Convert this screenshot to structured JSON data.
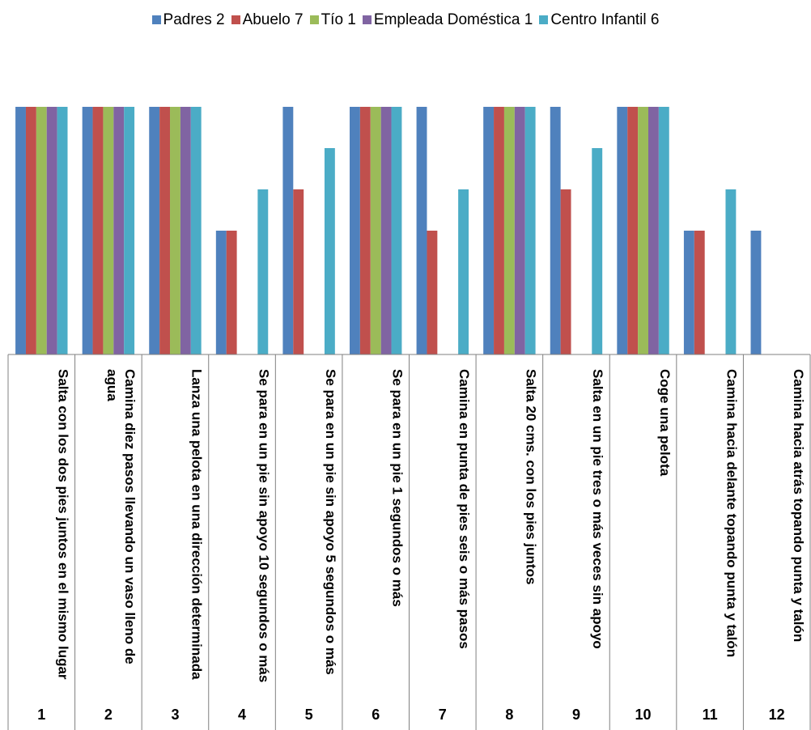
{
  "chart_data": {
    "type": "bar",
    "categories": [
      "Salta con los dos pies juntos en el mismo lugar",
      "Camina diez pasos llevando un vaso lleno de agua",
      "Lanza una pelota en una dirección determinada",
      "Se para en un pie sin apoyo 10 segundos o más",
      "Se para en un pie sin apoyo 5 segundos o más",
      "Se para en un pie 1 segundos o más",
      "Camina en punta de pies seis o más pasos",
      "Salta 20 cms. con los pies juntos",
      "Salta en un pie tres o más veces sin apoyo",
      "Coge una pelota",
      "Camina hacia delante topando punta y talón",
      "Camina hacia atrás topando punta y talón"
    ],
    "category_numbers": [
      "1",
      "2",
      "3",
      "4",
      "5",
      "6",
      "7",
      "8",
      "9",
      "10",
      "11",
      "12"
    ],
    "series": [
      {
        "name": "Padres 2",
        "color": "#4f81bd",
        "values": [
          6,
          6,
          6,
          3,
          6,
          6,
          6,
          6,
          6,
          6,
          3,
          3
        ]
      },
      {
        "name": "Abuelo 7",
        "color": "#c0504d",
        "values": [
          6,
          6,
          6,
          3,
          4,
          6,
          3,
          6,
          4,
          6,
          3,
          0
        ]
      },
      {
        "name": "Tío 1",
        "color": "#9bbb59",
        "values": [
          6,
          6,
          6,
          0,
          0,
          6,
          0,
          6,
          0,
          6,
          0,
          0
        ]
      },
      {
        "name": "Empleada Doméstica 1",
        "color": "#8064a2",
        "values": [
          6,
          6,
          6,
          0,
          0,
          6,
          0,
          6,
          0,
          6,
          0,
          0
        ]
      },
      {
        "name": "Centro Infantil 6",
        "color": "#4bacc6",
        "values": [
          6,
          6,
          6,
          4,
          5,
          6,
          4,
          6,
          5,
          6,
          4,
          0
        ]
      }
    ],
    "ylim": [
      0,
      6
    ],
    "legend": "top"
  }
}
